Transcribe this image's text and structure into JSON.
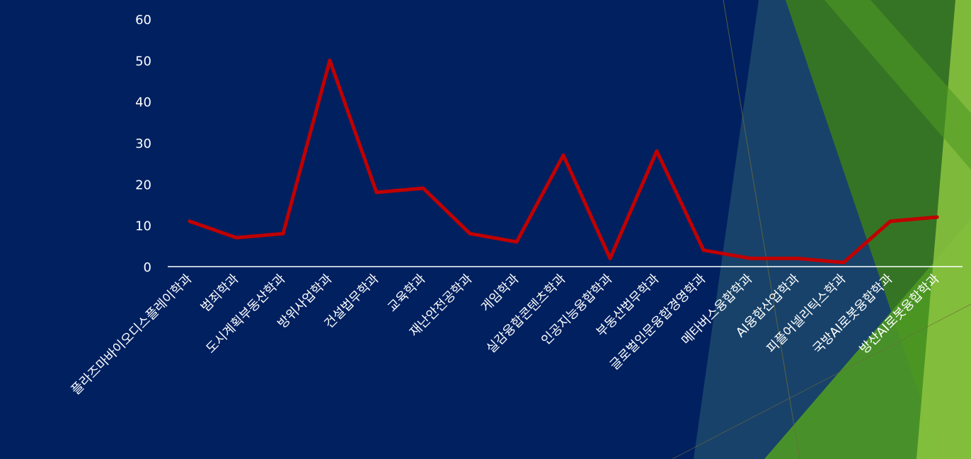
{
  "colors": {
    "background": "#002060",
    "line": "#C00000",
    "axis_text": "#FFFFFF",
    "axis_line": "#FFFFFF",
    "green_dark": "#3A7A1E",
    "green_mid": "#4E9A24",
    "green_light": "#8CC63F",
    "teal": "#2B5E73"
  },
  "chart_data": {
    "type": "line",
    "title": "",
    "xlabel": "",
    "ylabel": "",
    "ylim": [
      0,
      60
    ],
    "yticks": [
      0,
      10,
      20,
      30,
      40,
      50,
      60
    ],
    "grid": false,
    "legend": "none",
    "categories": [
      "플라즈마바이오디스플레이학과",
      "범죄학과",
      "도시계획부동산학과",
      "방위사업학과",
      "건설법무학과",
      "교육학과",
      "재난안전공학과",
      "게임학과",
      "실감융합콘텐츠학과",
      "인공지능융합학과",
      "부동산법무학과",
      "글로벌인문융합경영학과",
      "메타버스융합학과",
      "AI융합산업학과",
      "피플어넬리틱스학과",
      "국방AI로봇융합학과",
      "방산AI로봇융합학과"
    ],
    "series": [
      {
        "values": [
          11,
          7,
          8,
          50,
          18,
          19,
          8,
          6,
          27,
          2,
          28,
          4,
          2,
          2,
          1,
          11,
          12
        ]
      }
    ]
  }
}
